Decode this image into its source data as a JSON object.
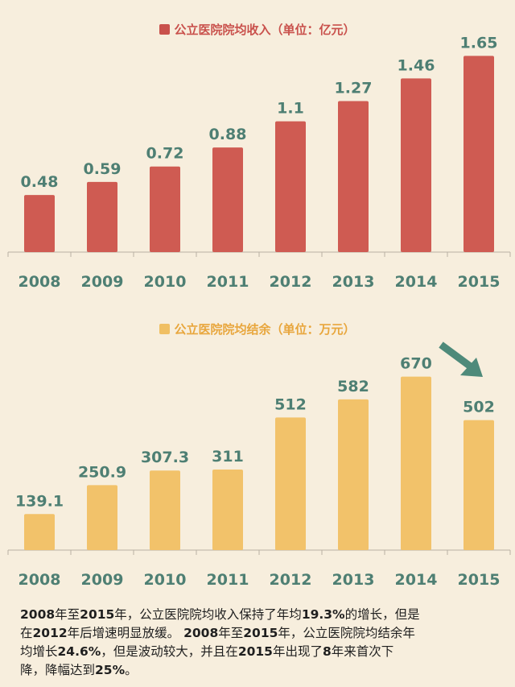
{
  "chart_data": [
    {
      "type": "bar",
      "title": "公立医院院均收入（单位：亿元）",
      "categories": [
        "2008",
        "2009",
        "2010",
        "2011",
        "2012",
        "2013",
        "2014",
        "2015"
      ],
      "values": [
        0.48,
        0.59,
        0.72,
        0.88,
        1.1,
        1.27,
        1.46,
        1.65
      ],
      "value_labels": [
        "0.48",
        "0.59",
        "0.72",
        "0.88",
        "1.1",
        "1.27",
        "1.46",
        "1.65"
      ],
      "color": "#cf5b52",
      "label_color": "#4e7f73",
      "ylim": [
        0,
        1.7
      ],
      "legend": "top-center",
      "grid": false
    },
    {
      "type": "bar",
      "title": "公立医院院均结余（单位：万元）",
      "categories": [
        "2008",
        "2009",
        "2010",
        "2011",
        "2012",
        "2013",
        "2014",
        "2015"
      ],
      "values": [
        139.1,
        250.9,
        307.3,
        311,
        512,
        582,
        670,
        502
      ],
      "value_labels": [
        "139.1",
        "250.9",
        "307.3",
        "311",
        "512",
        "582",
        "670",
        "502"
      ],
      "color": "#f2c26a",
      "label_color": "#4e7f73",
      "ylim": [
        0,
        700
      ],
      "legend": "top-center",
      "grid": false,
      "annotation": "down-arrow"
    }
  ],
  "note": {
    "lines": [
      [
        [
          "b",
          "2008"
        ],
        [
          "t",
          "年至"
        ],
        [
          "b",
          "2015"
        ],
        [
          "t",
          "年，公立医院院均收入保持了年均"
        ],
        [
          "b",
          "19.3%"
        ],
        [
          "t",
          "的增长，但是"
        ]
      ],
      [
        [
          "t",
          "在"
        ],
        [
          "b",
          "2012"
        ],
        [
          "t",
          "年后增速明显放缓。 "
        ],
        [
          "b",
          "2008"
        ],
        [
          "t",
          "年至"
        ],
        [
          "b",
          "2015"
        ],
        [
          "t",
          "年，公立医院院均结余年"
        ]
      ],
      [
        [
          "t",
          "均增长"
        ],
        [
          "b",
          "24.6%"
        ],
        [
          "t",
          "，但是波动较大，并且在"
        ],
        [
          "b",
          "2015"
        ],
        [
          "t",
          "年出现了"
        ],
        [
          "b",
          "8"
        ],
        [
          "t",
          "年来首次下"
        ]
      ],
      [
        [
          "t",
          "降，降幅达到"
        ],
        [
          "b",
          "25%"
        ],
        [
          "t",
          "。"
        ]
      ]
    ]
  }
}
